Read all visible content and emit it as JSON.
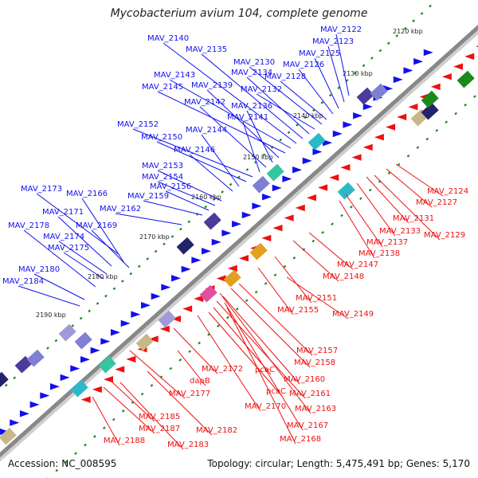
{
  "title": "Mycobacterium avium 104, complete genome",
  "accession": "Accession: NC_008595",
  "topology": "Topology: circular; Length: 5,475,491 bp; Genes: 5,170",
  "colors": {
    "forward": "#1010ee",
    "reverse": "#ee1010",
    "backbone": "#888888",
    "tickmark": "#1a8a1a"
  },
  "ticks": [
    "2120 kbp",
    "2130 kbp",
    "2140 kbp",
    "2150 kbp",
    "2160 kbp",
    "2170 kbp",
    "2180 kbp",
    "2190 kbp"
  ],
  "forward_labels": [
    "MAV_2122",
    "MAV_2123",
    "MAV_2125",
    "MAV_2126",
    "MAV_2128",
    "MAV_2130",
    "MAV_2132",
    "MAV_2134",
    "MAV_2135",
    "MAV_2140",
    "MAV_2143",
    "MAV_2145",
    "MAV_2139",
    "MAV_2136",
    "MAV_2142",
    "MAV_2141",
    "MAV_2152",
    "MAV_2150",
    "MAV_2144",
    "MAV_2146",
    "MAV_2153",
    "MAV_2154",
    "MAV_2156",
    "MAV_2159",
    "MAV_2173",
    "MAV_2166",
    "MAV_2162",
    "MAV_2171",
    "MAV_2178",
    "MAV_2169",
    "MAV_2174",
    "MAV_2175",
    "MAV_2180",
    "MAV_2184"
  ],
  "reverse_labels": [
    "MAV_2124",
    "MAV_2127",
    "MAV_2131",
    "MAV_2133",
    "MAV_2129",
    "MAV_2137",
    "MAV_2138",
    "MAV_2147",
    "MAV_2148",
    "MAV_2151",
    "MAV_2155",
    "MAV_2149",
    "MAV_2157",
    "MAV_2158",
    "MAV_2172",
    "MAV_2160",
    "pcaC",
    "dapB",
    "MAV_2161",
    "pcaC",
    "MAV_2177",
    "MAV_2163",
    "MAV_2170",
    "MAV_2167",
    "MAV_2185",
    "MAV_2182",
    "MAV_2187",
    "MAV_2168",
    "MAV_2188",
    "MAV_2183"
  ]
}
